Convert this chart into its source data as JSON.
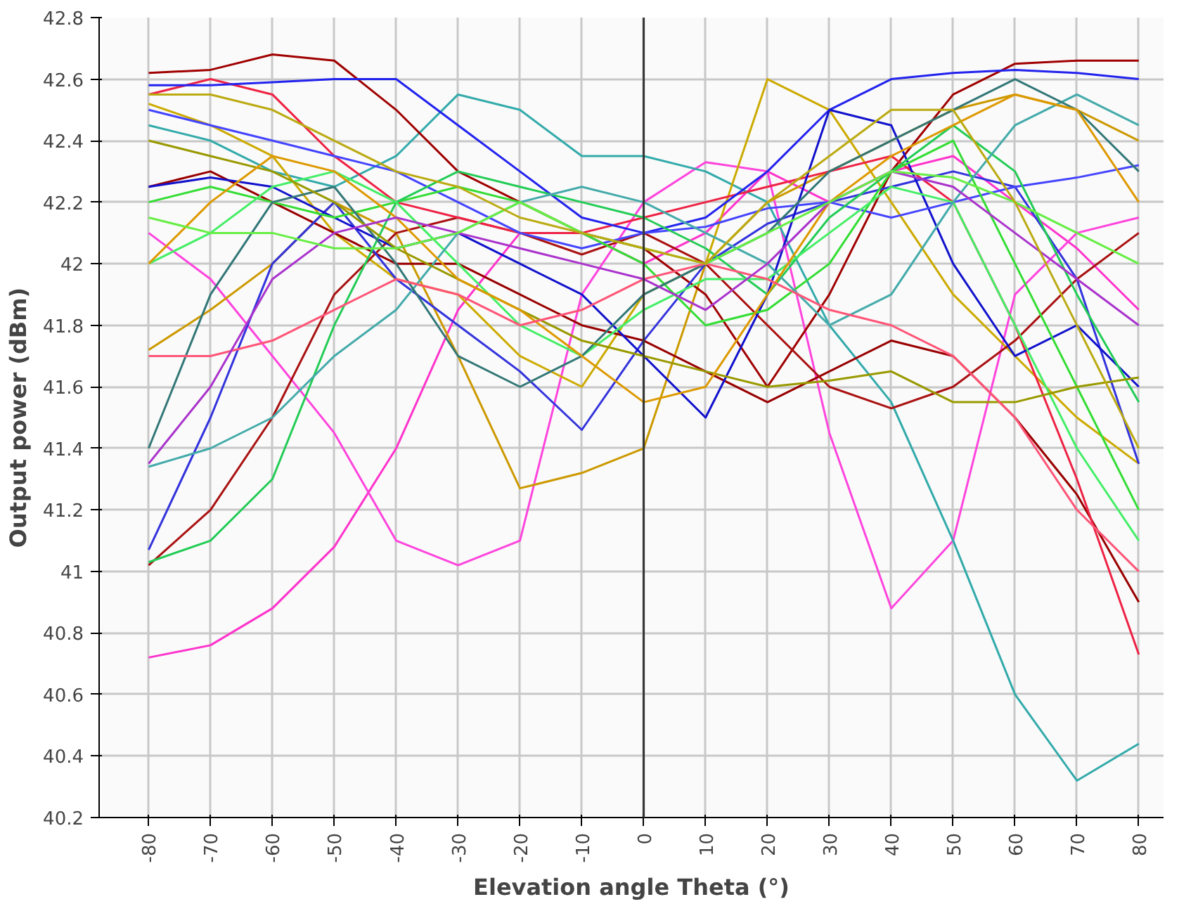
{
  "chart_data": {
    "type": "line",
    "xlabel": "Elevation angle Theta (°)",
    "ylabel": "Output power (dBm)",
    "x": [
      -80,
      -70,
      -60,
      -50,
      -40,
      -30,
      -20,
      -10,
      0,
      10,
      20,
      30,
      40,
      50,
      60,
      70,
      80
    ],
    "xlim": [
      -88,
      84
    ],
    "xticks": [
      -80,
      -70,
      -60,
      -50,
      -40,
      -30,
      -20,
      -10,
      0,
      10,
      20,
      30,
      40,
      50,
      60,
      70,
      80
    ],
    "ylim": [
      40.2,
      42.8
    ],
    "yticks": [
      40.2,
      40.4,
      40.6,
      40.8,
      41,
      41.2,
      41.4,
      41.6,
      41.8,
      42,
      42.2,
      42.4,
      42.6,
      42.8
    ],
    "grid": true,
    "line_style": "solid",
    "ref_lines": [
      {
        "axis": "x",
        "value": 0,
        "color": "#333333"
      }
    ],
    "series": [
      {
        "color": "#ff33cc",
        "values": [
          40.72,
          40.76,
          40.88,
          41.08,
          41.4,
          41.85,
          42.1,
          42.1,
          42.0,
          42.1,
          42.3,
          42.2,
          42.3,
          42.35,
          42.2,
          42.05,
          41.85
        ]
      },
      {
        "color": "#ff44dd",
        "values": [
          42.1,
          41.95,
          41.7,
          41.45,
          41.1,
          41.02,
          41.1,
          41.9,
          42.2,
          42.33,
          42.3,
          41.45,
          40.88,
          41.1,
          41.9,
          42.1,
          42.15
        ]
      },
      {
        "color": "#33aaaa",
        "values": [
          42.45,
          42.4,
          42.3,
          42.25,
          42.35,
          42.55,
          42.5,
          42.35,
          42.35,
          42.3,
          42.2,
          41.8,
          41.55,
          41.1,
          40.6,
          40.32,
          40.44
        ]
      },
      {
        "color": "#ccaa00",
        "values": [
          42.52,
          42.45,
          42.35,
          42.1,
          41.95,
          41.9,
          41.7,
          41.6,
          41.9,
          42.0,
          42.6,
          42.5,
          42.2,
          41.9,
          41.7,
          41.5,
          41.35
        ]
      },
      {
        "color": "#cc9900",
        "values": [
          41.72,
          41.85,
          42.0,
          42.2,
          42.1,
          41.7,
          41.27,
          41.32,
          41.4,
          42.0,
          42.2,
          42.3,
          42.4,
          42.5,
          42.55,
          42.5,
          42.4
        ]
      },
      {
        "color": "#a00000",
        "values": [
          42.62,
          42.63,
          42.68,
          42.66,
          42.5,
          42.3,
          42.2,
          42.1,
          42.05,
          41.9,
          41.6,
          41.9,
          42.3,
          42.55,
          42.65,
          42.66,
          42.66
        ]
      },
      {
        "color": "#990000",
        "values": [
          42.25,
          42.3,
          42.2,
          42.1,
          42.0,
          42.0,
          41.9,
          41.8,
          41.75,
          41.65,
          41.55,
          41.65,
          41.75,
          41.7,
          41.5,
          41.25,
          40.9
        ]
      },
      {
        "color": "#aa1111",
        "values": [
          41.02,
          41.2,
          41.5,
          41.9,
          42.1,
          42.15,
          42.1,
          42.03,
          42.1,
          42.0,
          41.8,
          41.6,
          41.53,
          41.6,
          41.75,
          41.95,
          42.1
        ]
      },
      {
        "color": "#ee2244",
        "values": [
          42.55,
          42.6,
          42.55,
          42.35,
          42.2,
          42.15,
          42.1,
          42.1,
          42.15,
          42.2,
          42.25,
          42.3,
          42.35,
          42.2,
          41.8,
          41.3,
          40.73
        ]
      },
      {
        "color": "#2222ee",
        "values": [
          42.58,
          42.58,
          42.59,
          42.6,
          42.6,
          42.45,
          42.3,
          42.15,
          42.1,
          42.15,
          42.3,
          42.5,
          42.6,
          42.62,
          42.63,
          42.62,
          42.6
        ]
      },
      {
        "color": "#3333dd",
        "values": [
          41.07,
          41.5,
          42.0,
          42.2,
          41.95,
          41.8,
          41.65,
          41.46,
          41.75,
          42.0,
          42.13,
          42.2,
          42.25,
          42.3,
          42.25,
          41.95,
          41.35
        ]
      },
      {
        "color": "#1111cc",
        "values": [
          42.25,
          42.28,
          42.25,
          42.15,
          42.05,
          42.1,
          42.0,
          41.9,
          41.7,
          41.5,
          41.9,
          42.5,
          42.45,
          42.0,
          41.7,
          41.8,
          41.6
        ]
      },
      {
        "color": "#4444ff",
        "values": [
          42.5,
          42.45,
          42.4,
          42.35,
          42.3,
          42.2,
          42.1,
          42.05,
          42.1,
          42.12,
          42.18,
          42.2,
          42.15,
          42.2,
          42.25,
          42.28,
          42.32
        ]
      },
      {
        "color": "#33dd33",
        "values": [
          42.2,
          42.25,
          42.2,
          42.15,
          42.2,
          42.25,
          42.2,
          42.1,
          42.0,
          41.8,
          41.85,
          42.0,
          42.3,
          42.4,
          42.0,
          41.6,
          41.2
        ]
      },
      {
        "color": "#22cc55",
        "values": [
          41.03,
          41.1,
          41.3,
          41.8,
          42.2,
          42.3,
          42.25,
          42.2,
          42.15,
          42.05,
          41.9,
          42.15,
          42.3,
          42.45,
          42.3,
          41.9,
          41.55
        ]
      },
      {
        "color": "#44ee66",
        "values": [
          42.0,
          42.1,
          42.25,
          42.3,
          42.2,
          42.0,
          41.8,
          41.7,
          41.85,
          41.95,
          41.95,
          42.1,
          42.25,
          42.2,
          41.8,
          41.4,
          41.1
        ]
      },
      {
        "color": "#44aaaa",
        "values": [
          41.34,
          41.4,
          41.5,
          41.7,
          41.85,
          42.1,
          42.2,
          42.25,
          42.2,
          42.1,
          42.0,
          41.8,
          41.9,
          42.2,
          42.45,
          42.55,
          42.45
        ]
      },
      {
        "color": "#337777",
        "values": [
          41.4,
          41.9,
          42.2,
          42.25,
          42.0,
          41.7,
          41.6,
          41.7,
          41.9,
          42.0,
          42.1,
          42.3,
          42.4,
          42.5,
          42.6,
          42.5,
          42.3
        ]
      },
      {
        "color": "#999900",
        "values": [
          42.4,
          42.35,
          42.3,
          42.2,
          42.05,
          41.95,
          41.85,
          41.75,
          41.7,
          41.65,
          41.6,
          41.62,
          41.65,
          41.55,
          41.55,
          41.6,
          41.63
        ]
      },
      {
        "color": "#dd9900",
        "values": [
          42.0,
          42.2,
          42.35,
          42.3,
          42.15,
          41.95,
          41.85,
          41.7,
          41.55,
          41.6,
          41.9,
          42.2,
          42.35,
          42.45,
          42.55,
          42.5,
          42.2
        ]
      },
      {
        "color": "#ff5577",
        "values": [
          41.7,
          41.7,
          41.75,
          41.85,
          41.95,
          41.9,
          41.8,
          41.85,
          41.95,
          42.0,
          41.95,
          41.85,
          41.8,
          41.7,
          41.5,
          41.2,
          41.0
        ]
      },
      {
        "color": "#aa33cc",
        "values": [
          41.35,
          41.6,
          41.95,
          42.1,
          42.15,
          42.1,
          42.05,
          42.0,
          41.95,
          41.85,
          42.0,
          42.2,
          42.3,
          42.25,
          42.1,
          41.95,
          41.8
        ]
      },
      {
        "color": "#66ee44",
        "values": [
          42.15,
          42.1,
          42.1,
          42.05,
          42.05,
          42.1,
          42.2,
          42.1,
          42.05,
          42.0,
          42.1,
          42.2,
          42.3,
          42.28,
          42.2,
          42.1,
          42.0
        ]
      },
      {
        "color": "#bbaa11",
        "values": [
          42.55,
          42.55,
          42.5,
          42.4,
          42.3,
          42.25,
          42.15,
          42.1,
          42.05,
          42.0,
          42.2,
          42.35,
          42.5,
          42.5,
          42.2,
          41.8,
          41.4
        ]
      }
    ]
  }
}
